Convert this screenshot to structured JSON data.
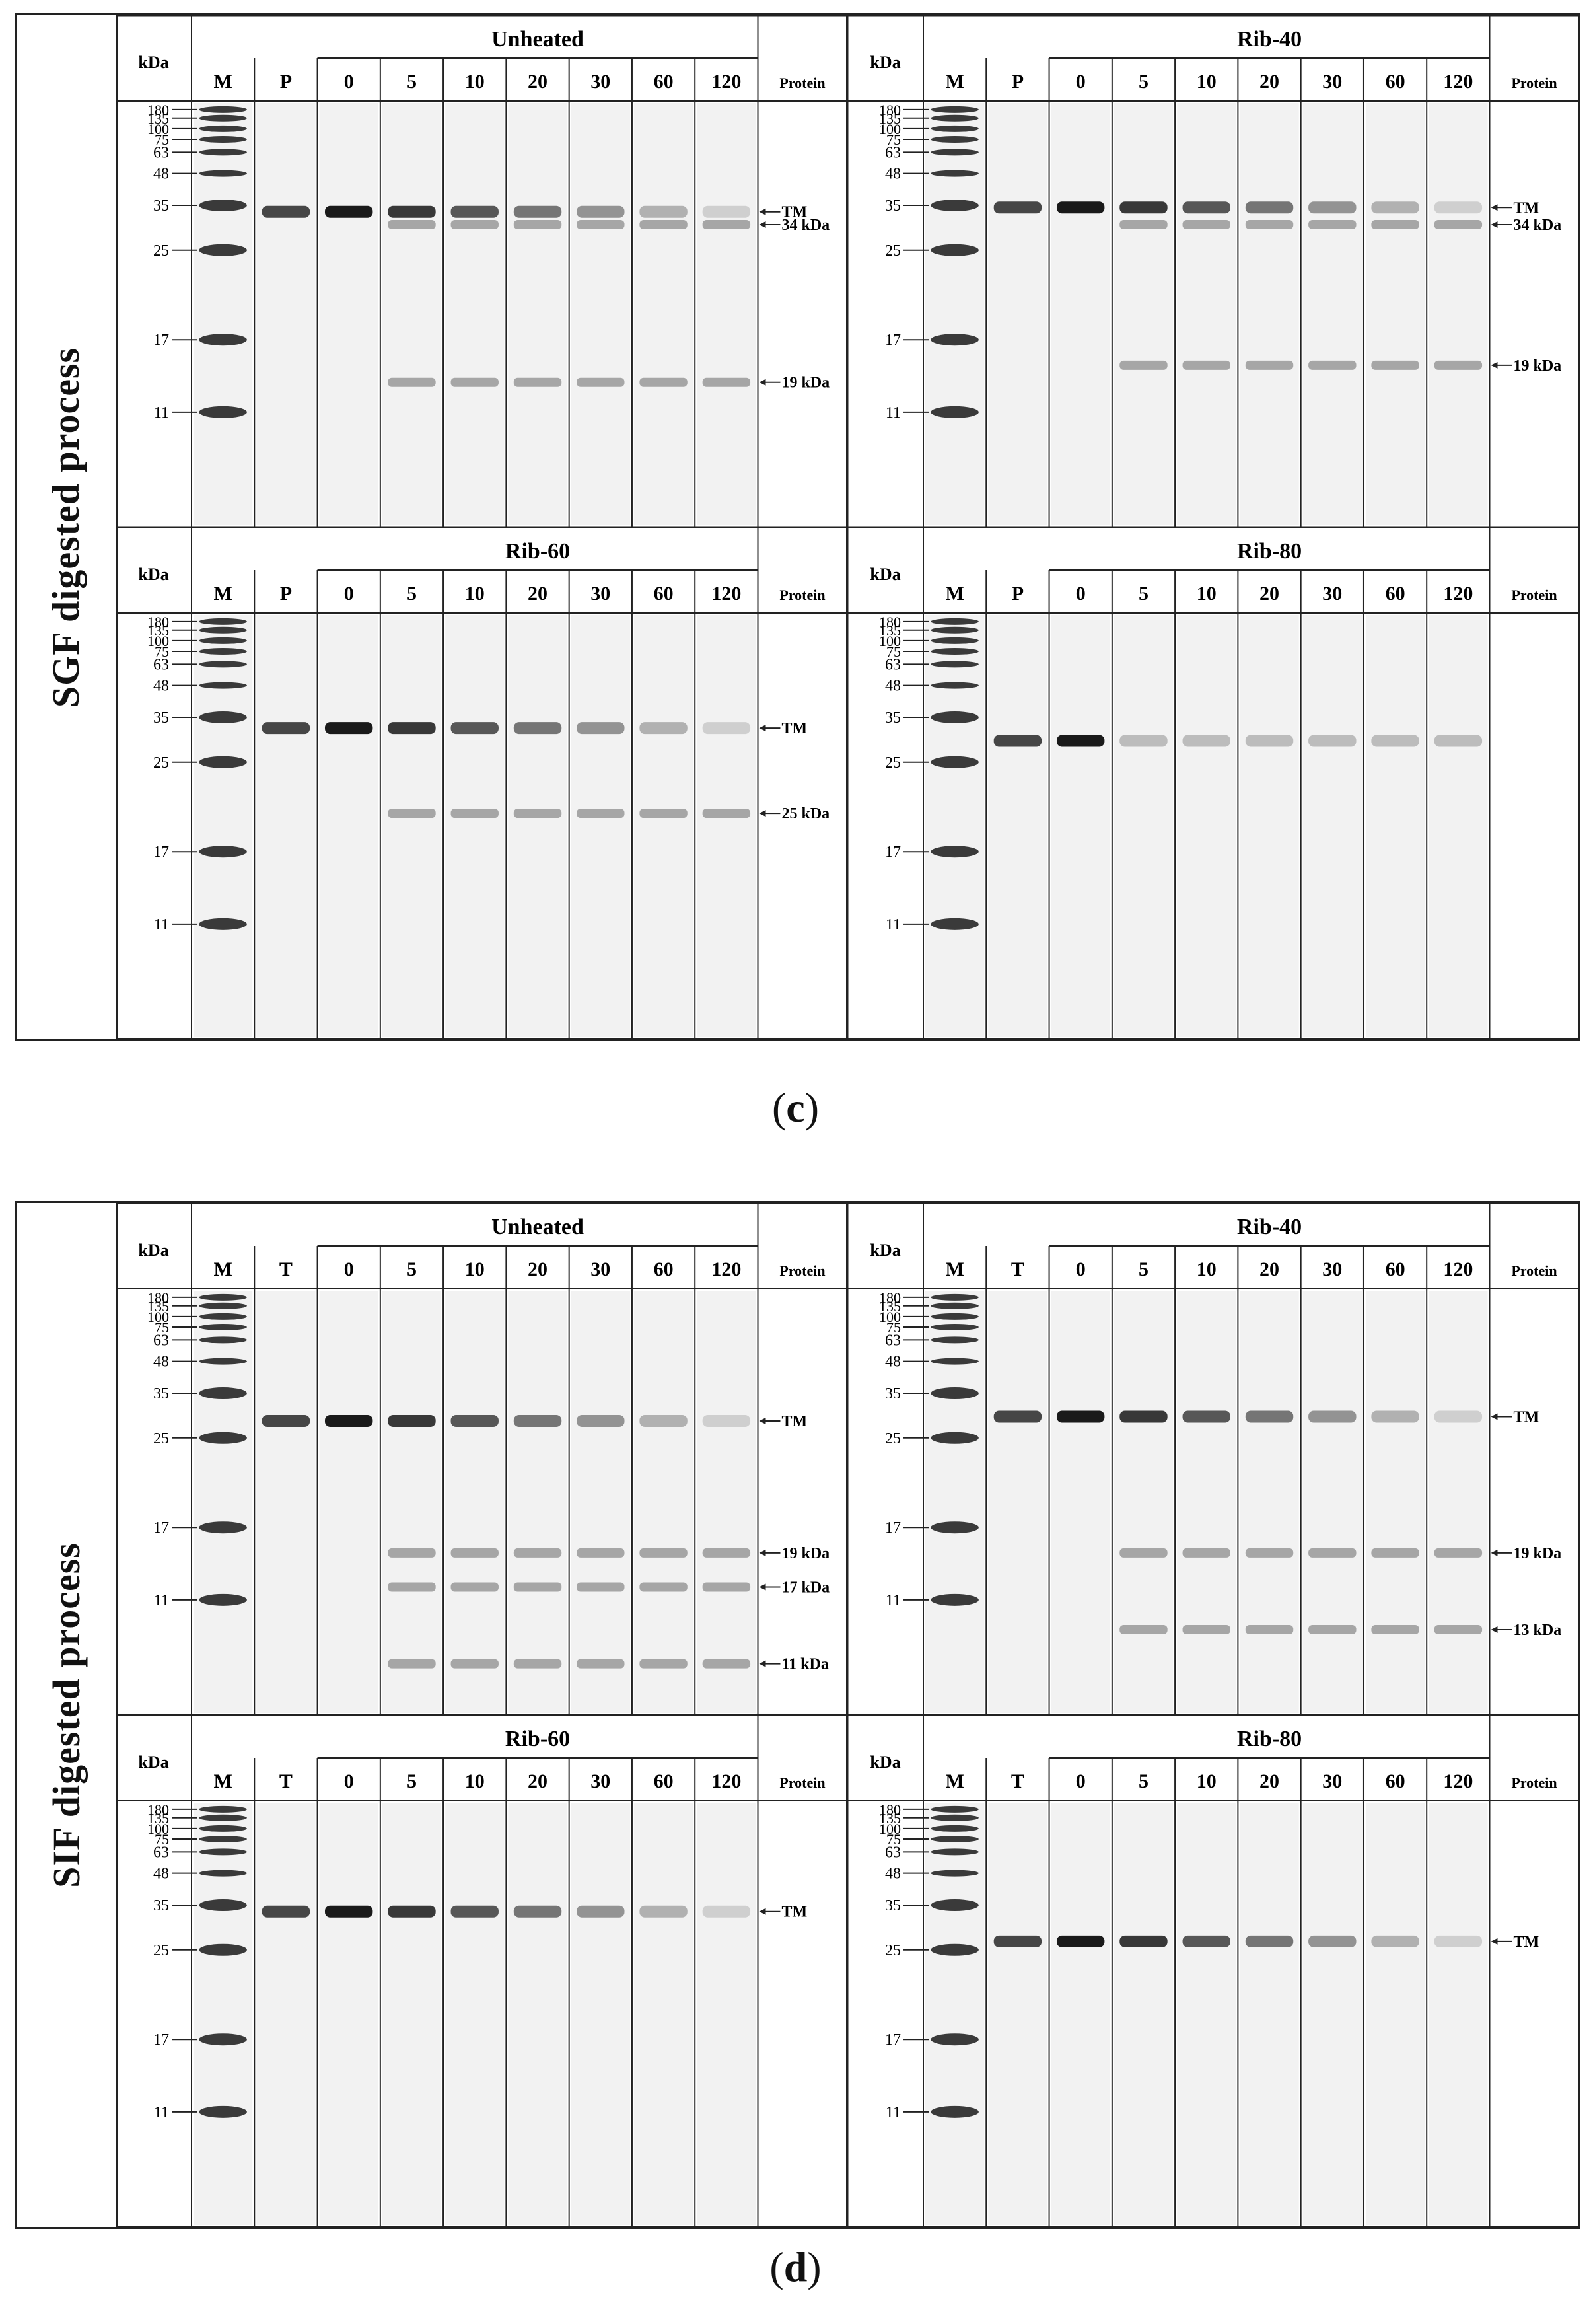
{
  "figures": [
    {
      "id": "c",
      "side_title": "SGF digested process",
      "caption_letter": "c",
      "panels": [
        {
          "title": "Unheated",
          "lanes": [
            "M",
            "P",
            "0",
            "5",
            "10",
            "20",
            "30",
            "60",
            "120"
          ],
          "annotations": [
            "TM",
            "34 kDa",
            "19 kDa"
          ],
          "annot_y": [
            0.26,
            0.29,
            0.66
          ]
        },
        {
          "title": "Rib-40",
          "lanes": [
            "M",
            "P",
            "0",
            "5",
            "10",
            "20",
            "30",
            "60",
            "120"
          ],
          "annotations": [
            "TM",
            "34 kDa",
            "19 kDa"
          ],
          "annot_y": [
            0.25,
            0.29,
            0.62
          ]
        },
        {
          "title": "Rib-60",
          "lanes": [
            "M",
            "P",
            "0",
            "5",
            "10",
            "20",
            "30",
            "60",
            "120"
          ],
          "annotations": [
            "TM",
            "25 kDa"
          ],
          "annot_y": [
            0.27,
            0.47
          ]
        },
        {
          "title": "Rib-80",
          "lanes": [
            "M",
            "P",
            "0",
            "5",
            "10",
            "20",
            "30",
            "60",
            "120"
          ],
          "annotations": [],
          "annot_y": []
        }
      ]
    },
    {
      "id": "d",
      "side_title": "SIF digested process",
      "caption_letter": "d",
      "panels": [
        {
          "title": "Unheated",
          "lanes": [
            "M",
            "T",
            "0",
            "5",
            "10",
            "20",
            "30",
            "60",
            "120"
          ],
          "annotations": [
            "TM",
            "19 kDa",
            "17 kDa",
            "11 kDa"
          ],
          "annot_y": [
            0.31,
            0.62,
            0.7,
            0.88
          ]
        },
        {
          "title": "Rib-40",
          "lanes": [
            "M",
            "T",
            "0",
            "5",
            "10",
            "20",
            "30",
            "60",
            "120"
          ],
          "annotations": [
            "TM",
            "19 kDa",
            "13 kDa"
          ],
          "annot_y": [
            0.3,
            0.62,
            0.8
          ]
        },
        {
          "title": "Rib-60",
          "lanes": [
            "M",
            "T",
            "0",
            "5",
            "10",
            "20",
            "30",
            "60",
            "120"
          ],
          "annotations": [
            "TM"
          ],
          "annot_y": [
            0.26
          ]
        },
        {
          "title": "Rib-80",
          "lanes": [
            "M",
            "T",
            "0",
            "5",
            "10",
            "20",
            "30",
            "60",
            "120"
          ],
          "annotations": [
            "TM"
          ],
          "annot_y": [
            0.33
          ]
        }
      ]
    }
  ],
  "labels": {
    "kda": "kDa",
    "protein": "Protein"
  },
  "markers": [
    "180",
    "135",
    "100",
    "75",
    "63",
    "48",
    "35",
    "25",
    "17",
    "11"
  ],
  "marker_y": [
    0.02,
    0.04,
    0.065,
    0.09,
    0.12,
    0.17,
    0.245,
    0.35,
    0.56,
    0.73
  ],
  "colors": {
    "band": "#1a1a1a",
    "gel": "#f2f2f2",
    "line": "#222222"
  }
}
